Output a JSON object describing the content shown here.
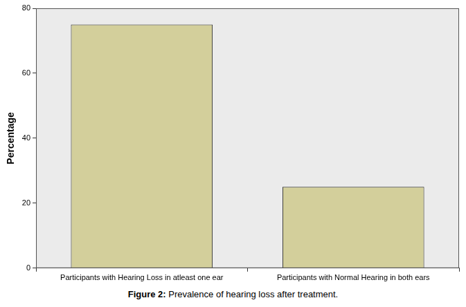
{
  "chart_data": {
    "type": "bar",
    "title": "Figure 2: Prevalence of hearing loss after treatment.",
    "y_label": "Percentage",
    "categories": [
      "Participants with Hearing Loss in atleast one ear",
      "Participants with Normal Hearing in both ears"
    ],
    "values": [
      75,
      25
    ],
    "color": "#d3cf9b",
    "ylim": [
      0,
      80
    ],
    "yticks": [
      0,
      20,
      40,
      60,
      80
    ],
    "grid": false
  }
}
